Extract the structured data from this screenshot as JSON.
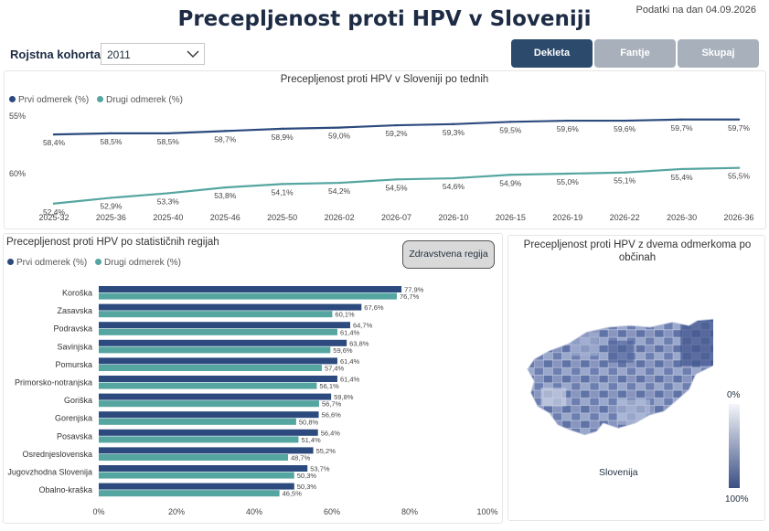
{
  "header": {
    "title": "Precepljenost proti HPV v Sloveniji",
    "date_text": "Podatki na dan 04.09.2026",
    "cohort_label": "Rojstna kohorta",
    "cohort_value": "2011"
  },
  "toggle": {
    "girls": "Dekleta",
    "boys": "Fantje",
    "all": "Skupaj",
    "active": "Dekleta"
  },
  "colors": {
    "first_dose": "#2c4a7e",
    "second_dose": "#55a5a0",
    "active_button": "#2c4a6b",
    "inactive_button": "#a8b1bb"
  },
  "line_panel": {
    "title": "Precepljenost proti HPV v Sloveniji po tednih",
    "legend": [
      "Prvi odmerek (%)",
      "Drugi odmerek (%)"
    ]
  },
  "bar_panel": {
    "title": "Precepljenost proti HPV po statističnih regijah",
    "legend": [
      "Prvi odmerek (%)",
      "Drugi odmerek (%)"
    ],
    "region_button": "Zdravstvena regija"
  },
  "map_panel": {
    "title": "Precepljenost proti HPV z dvema odmerkoma po občinah",
    "country_label": "Slovenija",
    "scale_min": "0%",
    "scale_max": "100%"
  },
  "chart_data": [
    {
      "type": "line",
      "title": "Precepljenost proti HPV v Sloveniji po tednih",
      "x": [
        "2025-32",
        "2025-36",
        "2025-40",
        "2025-46",
        "2025-50",
        "2026-02",
        "2026-07",
        "2026-10",
        "2026-15",
        "2026-19",
        "2026-22",
        "2026-30",
        "2026-36"
      ],
      "y_tick_labels": [
        "55%",
        "60%"
      ],
      "ylim": [
        52,
        60.5
      ],
      "series": [
        {
          "name": "Prvi odmerek (%)",
          "values": [
            58.4,
            58.5,
            58.5,
            58.7,
            58.9,
            59.0,
            59.2,
            59.3,
            59.5,
            59.6,
            59.6,
            59.7,
            59.7
          ],
          "labels": [
            "58,4%",
            "58,5%",
            "58,5%",
            "58,7%",
            "58,9%",
            "59,0%",
            "59,2%",
            "59,3%",
            "59,5%",
            "59,6%",
            "59,6%",
            "59,7%",
            "59,7%"
          ]
        },
        {
          "name": "Drugi odmerek (%)",
          "values": [
            52.4,
            52.9,
            53.3,
            53.8,
            54.1,
            54.2,
            54.5,
            54.6,
            54.9,
            55.0,
            55.1,
            55.4,
            55.5
          ],
          "labels": [
            "52,4%",
            "52,9%",
            "53,3%",
            "53,8%",
            "54,1%",
            "54,2%",
            "54,5%",
            "54,6%",
            "54,9%",
            "55,0%",
            "55,1%",
            "55,4%",
            "55,5%"
          ]
        }
      ],
      "grid": false,
      "legend": "top-left"
    },
    {
      "type": "bar",
      "orientation": "horizontal",
      "title": "Precepljenost proti HPV po statističnih regijah",
      "categories": [
        "Koroška",
        "Zasavska",
        "Podravska",
        "Savinjska",
        "Pomurska",
        "Primorsko-notranjska",
        "Goriška",
        "Gorenjska",
        "Posavska",
        "Osrednjeslovenska",
        "Jugovzhodna Slovenija",
        "Obalno-kraška"
      ],
      "x_tick_labels": [
        "0%",
        "20%",
        "40%",
        "60%",
        "80%",
        "100%"
      ],
      "xlim": [
        0,
        100
      ],
      "series": [
        {
          "name": "Prvi odmerek (%)",
          "values": [
            77.9,
            67.6,
            64.7,
            63.8,
            61.4,
            61.4,
            59.8,
            56.6,
            56.4,
            55.2,
            53.7,
            50.3
          ],
          "labels": [
            "77,9%",
            "67,6%",
            "64,7%",
            "63,8%",
            "61,4%",
            "61,4%",
            "59,8%",
            "56,6%",
            "56,4%",
            "55,2%",
            "53,7%",
            "50,3%"
          ]
        },
        {
          "name": "Drugi odmerek (%)",
          "values": [
            76.7,
            60.1,
            61.4,
            59.6,
            57.4,
            56.1,
            56.7,
            50.8,
            51.4,
            48.7,
            50.3,
            46.5
          ],
          "labels": [
            "76,7%",
            "60,1%",
            "61,4%",
            "59,6%",
            "57,4%",
            "56,1%",
            "56,7%",
            "50,8%",
            "51,4%",
            "48,7%",
            "50,3%",
            "46,5%"
          ]
        }
      ],
      "grid": false,
      "legend": "top-left"
    }
  ]
}
